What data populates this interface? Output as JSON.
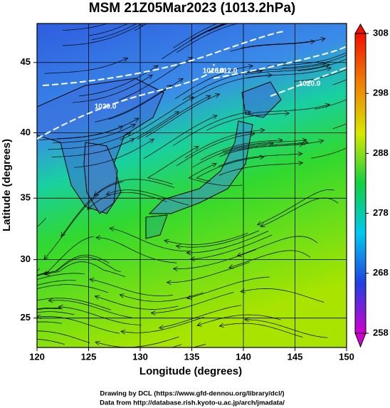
{
  "chart_data": {
    "type": "map",
    "title": "MSM 21Z05Mar2023 (1013.2hPa)",
    "x_label": "Longitude (degrees)",
    "y_label": "Latitude  (degrees)",
    "xlim": [
      120,
      150
    ],
    "xticks": [
      120,
      125,
      130,
      135,
      140,
      145,
      150
    ],
    "ylim": [
      22.4,
      47.6
    ],
    "yticks": [
      25,
      30,
      35,
      40,
      45
    ],
    "yscale": "mercator",
    "grid": true,
    "colorbar": {
      "lim": [
        258,
        308
      ],
      "ticks": [
        258,
        268,
        278,
        288,
        298,
        308
      ],
      "colors": [
        "#d000d0",
        "#2040e0",
        "#00c8f0",
        "#10d040",
        "#d8e800",
        "#f08000",
        "#f01000"
      ]
    },
    "contour_labels": [
      "1020.0",
      "1016.0",
      "1012.0",
      "1020.0"
    ],
    "credits": [
      "Drawing by DCL (https://www.gfd-dennou.org/library/dcl/)",
      "Data from http://database.rish.kyoto-u.ac.jp/arch/jmadata/"
    ]
  }
}
